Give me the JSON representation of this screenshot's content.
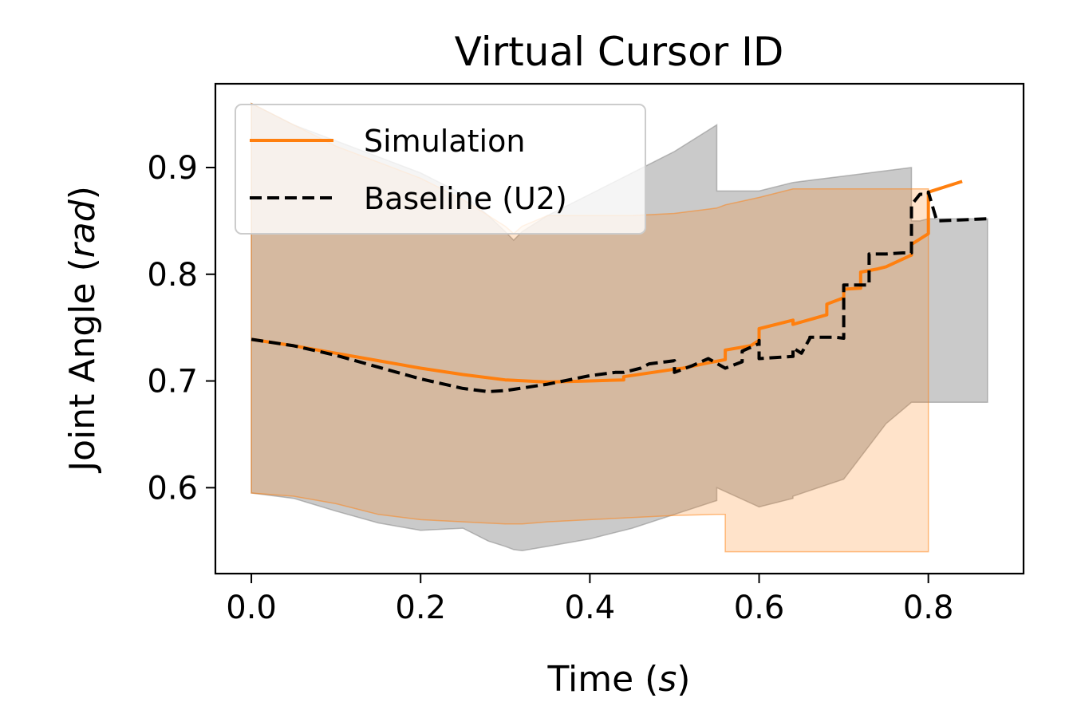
{
  "chart_data": {
    "type": "line",
    "title": "Virtual Cursor ID",
    "xlabel": {
      "main": "Time (",
      "italic": "s",
      "close": ")"
    },
    "ylabel": {
      "main": "Joint Angle (",
      "italic": "rad",
      "close": ")"
    },
    "xlim": [
      -0.0425,
      0.9125
    ],
    "ylim": [
      0.5195,
      0.9785
    ],
    "xticks": [
      0.0,
      0.2,
      0.4,
      0.6,
      0.8
    ],
    "xtick_labels": [
      "0.0",
      "0.2",
      "0.4",
      "0.6",
      "0.8"
    ],
    "yticks": [
      0.6,
      0.7,
      0.8,
      0.9
    ],
    "ytick_labels": [
      "0.6",
      "0.7",
      "0.8",
      "0.9"
    ],
    "legend": {
      "position": "upper-left",
      "entries": [
        "Simulation",
        "Baseline (U2)"
      ]
    },
    "colors": {
      "simulation": "#ff7f0e",
      "baseline": "#000000",
      "sim_band": "#ff7f0e",
      "base_band": "#808080"
    },
    "series": [
      {
        "name": "Simulation",
        "style": "solid",
        "x": [
          0.0,
          0.05,
          0.1,
          0.15,
          0.2,
          0.25,
          0.3,
          0.35,
          0.4,
          0.44,
          0.44,
          0.5,
          0.51,
          0.54,
          0.56,
          0.56,
          0.59,
          0.6,
          0.6,
          0.64,
          0.64,
          0.68,
          0.68,
          0.7,
          0.7,
          0.72,
          0.72,
          0.74,
          0.75,
          0.78,
          0.78,
          0.8,
          0.8,
          0.84
        ],
        "y": [
          0.739,
          0.733,
          0.726,
          0.719,
          0.712,
          0.706,
          0.701,
          0.699,
          0.7,
          0.701,
          0.704,
          0.711,
          0.712,
          0.717,
          0.72,
          0.729,
          0.733,
          0.738,
          0.749,
          0.757,
          0.753,
          0.762,
          0.772,
          0.778,
          0.786,
          0.787,
          0.802,
          0.805,
          0.807,
          0.818,
          0.828,
          0.838,
          0.877,
          0.887
        ]
      },
      {
        "name": "Baseline (U2)",
        "style": "dashed",
        "x": [
          0.0,
          0.05,
          0.1,
          0.15,
          0.2,
          0.25,
          0.28,
          0.3,
          0.35,
          0.4,
          0.43,
          0.44,
          0.46,
          0.47,
          0.49,
          0.5,
          0.5,
          0.52,
          0.54,
          0.56,
          0.57,
          0.58,
          0.58,
          0.6,
          0.6,
          0.6,
          0.62,
          0.64,
          0.64,
          0.65,
          0.66,
          0.66,
          0.69,
          0.7,
          0.7,
          0.73,
          0.73,
          0.75,
          0.77,
          0.78,
          0.78,
          0.79,
          0.8,
          0.8,
          0.81,
          0.87
        ],
        "y": [
          0.739,
          0.733,
          0.724,
          0.713,
          0.702,
          0.693,
          0.69,
          0.691,
          0.697,
          0.705,
          0.708,
          0.708,
          0.712,
          0.716,
          0.718,
          0.719,
          0.708,
          0.714,
          0.721,
          0.712,
          0.715,
          0.718,
          0.728,
          0.735,
          0.738,
          0.721,
          0.722,
          0.723,
          0.731,
          0.726,
          0.74,
          0.741,
          0.741,
          0.74,
          0.79,
          0.79,
          0.819,
          0.819,
          0.82,
          0.82,
          0.865,
          0.875,
          0.875,
          0.877,
          0.85,
          0.852
        ]
      }
    ],
    "bands": [
      {
        "name": "Baseline spread",
        "x": [
          0.0,
          0.05,
          0.1,
          0.15,
          0.2,
          0.25,
          0.28,
          0.3,
          0.31,
          0.32,
          0.35,
          0.4,
          0.45,
          0.5,
          0.55,
          0.55,
          0.6,
          0.64,
          0.64,
          0.7,
          0.75,
          0.78,
          0.78,
          0.79,
          0.8,
          0.8,
          0.81,
          0.87
        ],
        "upper": [
          0.96,
          0.94,
          0.925,
          0.91,
          0.895,
          0.875,
          0.855,
          0.84,
          0.832,
          0.84,
          0.855,
          0.875,
          0.895,
          0.915,
          0.94,
          0.878,
          0.878,
          0.886,
          0.886,
          0.892,
          0.897,
          0.9,
          0.85,
          0.85,
          0.852,
          0.852,
          0.852,
          0.852
        ],
        "lower": [
          0.595,
          0.59,
          0.578,
          0.567,
          0.56,
          0.562,
          0.55,
          0.545,
          0.542,
          0.541,
          0.545,
          0.552,
          0.562,
          0.575,
          0.588,
          0.6,
          0.582,
          0.59,
          0.592,
          0.608,
          0.66,
          0.68,
          0.68,
          0.68,
          0.68,
          0.68,
          0.68,
          0.68
        ]
      },
      {
        "name": "Simulation spread",
        "x": [
          0.0,
          0.05,
          0.1,
          0.15,
          0.2,
          0.25,
          0.3,
          0.31,
          0.32,
          0.35,
          0.4,
          0.45,
          0.5,
          0.55,
          0.56,
          0.56,
          0.6,
          0.64,
          0.64,
          0.68,
          0.68,
          0.7,
          0.7,
          0.72,
          0.72,
          0.75,
          0.78,
          0.78,
          0.8,
          0.8
        ],
        "upper": [
          0.96,
          0.94,
          0.92,
          0.905,
          0.89,
          0.87,
          0.845,
          0.838,
          0.845,
          0.855,
          0.855,
          0.855,
          0.857,
          0.862,
          0.865,
          0.865,
          0.872,
          0.88,
          0.88,
          0.88,
          0.88,
          0.88,
          0.88,
          0.88,
          0.88,
          0.88,
          0.88,
          0.88,
          0.88,
          0.88
        ],
        "lower": [
          0.595,
          0.592,
          0.585,
          0.575,
          0.57,
          0.568,
          0.566,
          0.566,
          0.566,
          0.568,
          0.57,
          0.572,
          0.574,
          0.575,
          0.575,
          0.54,
          0.54,
          0.54,
          0.54,
          0.54,
          0.54,
          0.54,
          0.54,
          0.54,
          0.54,
          0.54,
          0.54,
          0.54,
          0.54,
          0.54
        ]
      }
    ]
  }
}
